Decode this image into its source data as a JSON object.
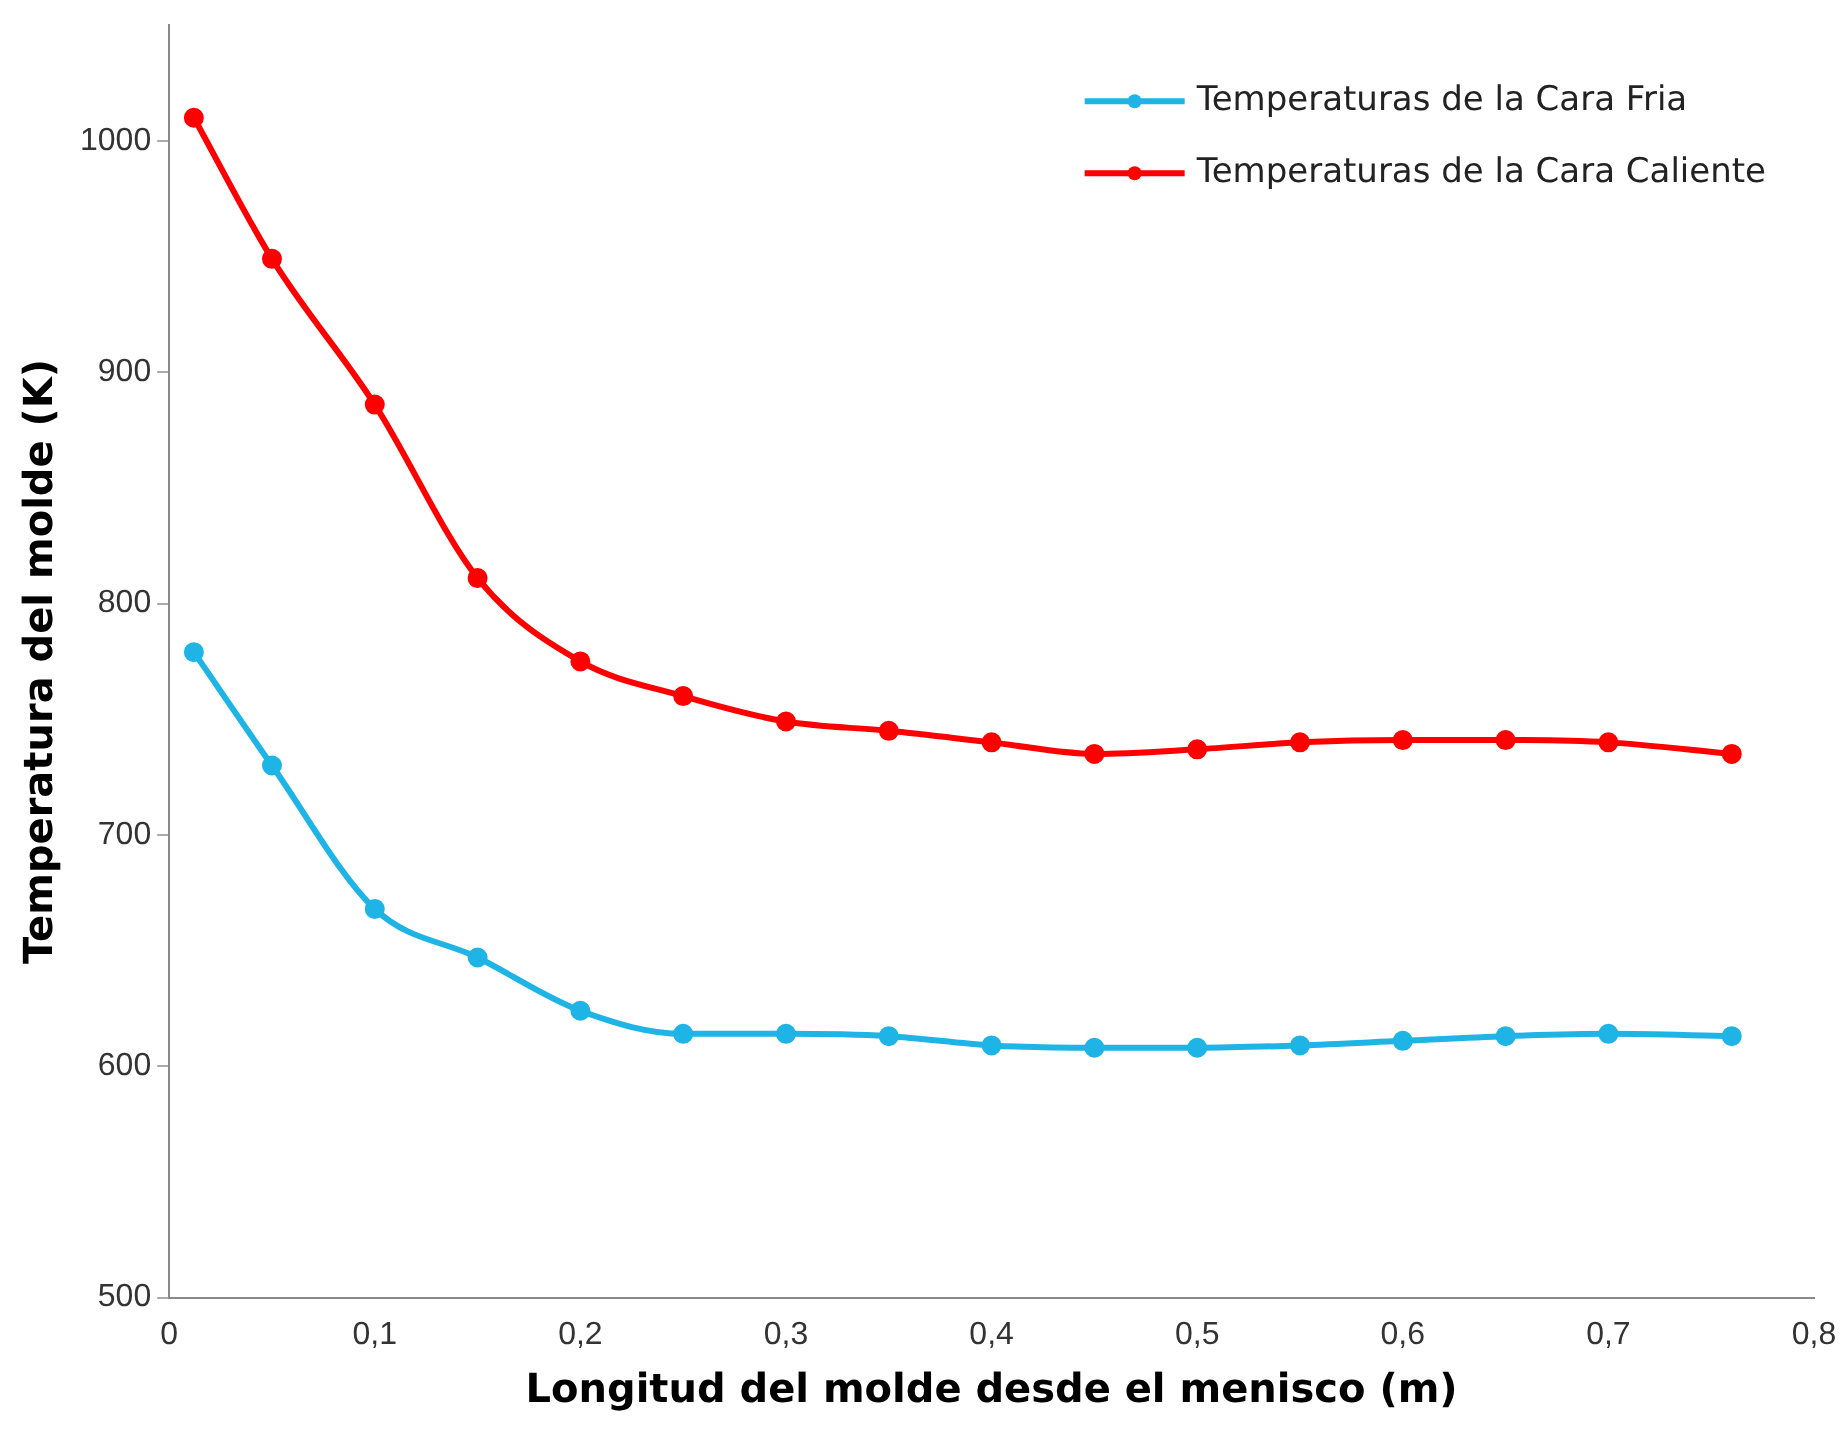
{
  "chart_data": {
    "type": "line",
    "xlabel": "Longitud del molde desde el menisco (m)",
    "ylabel": "Temperatura del molde (K)",
    "x": [
      0.012,
      0.05,
      0.1,
      0.15,
      0.2,
      0.25,
      0.3,
      0.35,
      0.4,
      0.45,
      0.5,
      0.55,
      0.6,
      0.65,
      0.7,
      0.76
    ],
    "series": [
      {
        "name": "Temperaturas de la Cara Fria",
        "color": "#1fb4e6",
        "values": [
          779,
          730,
          668,
          647,
          624,
          614,
          614,
          613,
          609,
          608,
          608,
          609,
          611,
          613,
          614,
          613
        ]
      },
      {
        "name": "Temperaturas de la Cara Caliente",
        "color": "#ff0000",
        "values": [
          1010,
          949,
          886,
          811,
          775,
          760,
          749,
          745,
          740,
          735,
          737,
          740,
          741,
          741,
          740,
          735
        ]
      }
    ],
    "xlim": [
      0,
      0.8
    ],
    "xticks": [
      0,
      {
        "value": 0.1,
        "label": "0,1"
      },
      {
        "value": 0.2,
        "label": "0,2"
      },
      {
        "value": 0.3,
        "label": "0,3"
      },
      {
        "value": 0.4,
        "label": "0,4"
      },
      {
        "value": 0.5,
        "label": "0,5"
      },
      {
        "value": 0.6,
        "label": "0,6"
      },
      {
        "value": 0.7,
        "label": "0,7"
      },
      {
        "value": 0.8,
        "label": "0,8"
      }
    ],
    "ylim": [
      500,
      1050
    ],
    "yticks": [
      500,
      600,
      700,
      800,
      900,
      1000
    ],
    "grid": false,
    "legend": "top right",
    "marker": "circle",
    "line_style": "solid"
  }
}
